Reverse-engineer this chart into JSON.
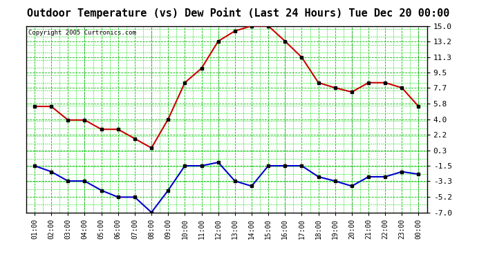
{
  "title": "Outdoor Temperature (vs) Dew Point (Last 24 Hours) Tue Dec 20 00:00",
  "copyright": "Copyright 2005 Curtronics.com",
  "x_labels": [
    "01:00",
    "02:00",
    "03:00",
    "04:00",
    "05:00",
    "06:00",
    "07:00",
    "08:00",
    "09:00",
    "10:00",
    "11:00",
    "12:00",
    "13:00",
    "14:00",
    "15:00",
    "16:00",
    "17:00",
    "18:00",
    "19:00",
    "20:00",
    "21:00",
    "22:00",
    "23:00",
    "00:00"
  ],
  "temp_red": [
    5.5,
    5.5,
    3.9,
    3.9,
    2.8,
    2.8,
    1.7,
    0.6,
    4.0,
    8.3,
    10.0,
    13.2,
    14.4,
    15.0,
    15.0,
    13.2,
    11.3,
    8.3,
    7.7,
    7.2,
    8.3,
    8.3,
    7.7,
    5.5
  ],
  "dew_blue": [
    -1.5,
    -2.2,
    -3.3,
    -3.3,
    -4.4,
    -5.2,
    -5.2,
    -7.0,
    -4.4,
    -1.5,
    -1.5,
    -1.1,
    -3.3,
    -3.9,
    -1.5,
    -1.5,
    -1.5,
    -2.8,
    -3.3,
    -3.9,
    -2.8,
    -2.8,
    -2.2,
    -2.5
  ],
  "y_ticks": [
    -7.0,
    -5.2,
    -3.3,
    -1.5,
    0.3,
    2.2,
    4.0,
    5.8,
    7.7,
    9.5,
    11.3,
    13.2,
    15.0
  ],
  "y_tick_labels": [
    "-7.0",
    "-5.2",
    "-3.3",
    "-1.5",
    "0.3",
    "2.2",
    "4.0",
    "5.8",
    "7.7",
    "9.5",
    "11.3",
    "13.2",
    "15.0"
  ],
  "ymin": -7.0,
  "ymax": 15.0,
  "bg_color": "#ffffff",
  "plot_bg": "#ffffff",
  "red_color": "#cc0000",
  "blue_color": "#0000cc",
  "grid_green_dark": "#00bb00",
  "grid_green_light": "#00dd00",
  "gray_vline_color": "#aaaaaa",
  "gray_vline_positions": [
    3,
    7,
    11,
    15,
    19,
    23
  ],
  "title_fontsize": 11,
  "marker": "s",
  "marker_size": 3,
  "line_width": 1.5
}
